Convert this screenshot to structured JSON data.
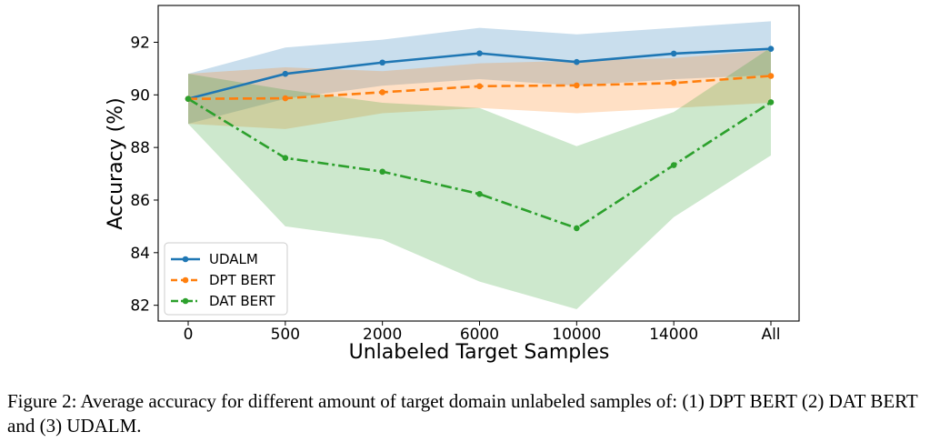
{
  "chart_data": {
    "type": "line",
    "categories": [
      "0",
      "500",
      "2000",
      "6000",
      "10000",
      "14000",
      "All"
    ],
    "xlabel": "Unlabeled Target Samples",
    "ylabel": "Accuracy (%)",
    "ylim": [
      81.4,
      93.4
    ],
    "yticks": [
      82,
      84,
      86,
      88,
      90,
      92
    ],
    "grid": false,
    "legend_position": "lower-left",
    "series": [
      {
        "name": "UDALM",
        "color": "#1f77b4",
        "style": "solid",
        "values": [
          89.85,
          90.8,
          91.23,
          91.58,
          91.25,
          91.57,
          91.75
        ],
        "lower": [
          88.9,
          89.85,
          90.35,
          90.6,
          90.35,
          90.6,
          90.75
        ],
        "upper": [
          90.8,
          91.8,
          92.1,
          92.55,
          92.3,
          92.55,
          92.8
        ]
      },
      {
        "name": "DPT BERT",
        "color": "#ff7f0e",
        "style": "dashed",
        "values": [
          89.85,
          89.87,
          90.1,
          90.33,
          90.36,
          90.45,
          90.72
        ],
        "lower": [
          88.9,
          88.7,
          89.3,
          89.5,
          89.3,
          89.5,
          89.7
        ],
        "upper": [
          90.8,
          91.05,
          90.9,
          91.2,
          91.3,
          91.4,
          91.7
        ]
      },
      {
        "name": "DAT BERT",
        "color": "#2ca02c",
        "style": "dashdot",
        "values": [
          89.85,
          87.6,
          87.08,
          86.23,
          84.93,
          87.33,
          89.72
        ],
        "lower": [
          88.9,
          85.0,
          84.5,
          82.9,
          81.85,
          85.35,
          87.7
        ],
        "upper": [
          90.8,
          90.2,
          89.7,
          89.5,
          88.05,
          89.35,
          91.8
        ]
      }
    ]
  },
  "caption": "Figure 2: Average accuracy for different amount of target domain unlabeled samples of: (1) DPT BERT (2) DAT BERT and (3) UDALM."
}
